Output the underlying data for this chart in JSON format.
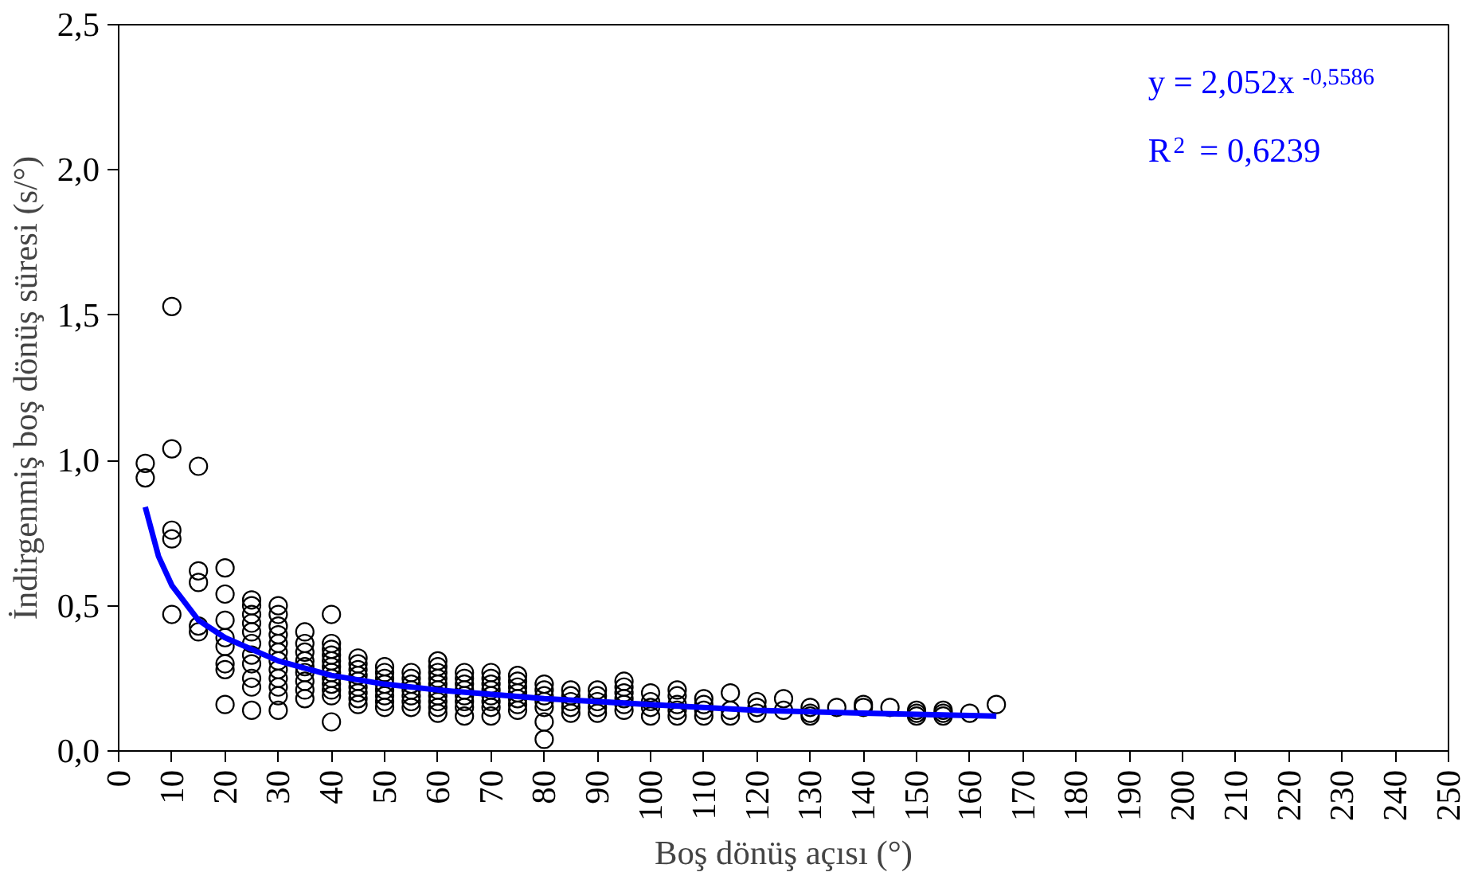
{
  "chart_data": {
    "type": "scatter",
    "xlabel": "Boş dönüş açısı (°)",
    "ylabel": "İndirgenmiş boş dönüş süresi (s/°)",
    "xlim": [
      0,
      250
    ],
    "ylim": [
      0,
      2.5
    ],
    "xticks": [
      0,
      10,
      20,
      30,
      40,
      50,
      60,
      70,
      80,
      90,
      100,
      110,
      120,
      130,
      140,
      150,
      160,
      170,
      180,
      190,
      200,
      210,
      220,
      230,
      240,
      250
    ],
    "yticks": [
      {
        "value": 0,
        "label": "0,0"
      },
      {
        "value": 0.5,
        "label": "0,5"
      },
      {
        "value": 1,
        "label": "1,0"
      },
      {
        "value": 1.5,
        "label": "1,5"
      },
      {
        "value": 2,
        "label": "2,0"
      },
      {
        "value": 2.5,
        "label": "2,5"
      }
    ],
    "grid": false,
    "annotations": [
      "y = 2,052x$^{-0,5586}$",
      "R$^{2}$ = 0,6239"
    ],
    "series": [
      {
        "marker": "circle",
        "color": "#000000",
        "x": [
          5,
          5,
          10,
          10,
          10,
          10,
          10,
          15,
          15,
          15,
          15,
          15,
          20,
          20,
          20,
          20,
          20,
          20,
          20,
          20,
          25,
          25,
          25,
          25,
          25,
          25,
          25,
          25,
          25,
          25,
          25,
          30,
          30,
          30,
          30,
          30,
          30,
          30,
          30,
          30,
          30,
          30,
          30,
          35,
          35,
          35,
          35,
          35,
          35,
          35,
          35,
          35,
          40,
          40,
          40,
          40,
          40,
          40,
          40,
          40,
          40,
          40,
          40,
          40,
          45,
          45,
          45,
          45,
          45,
          45,
          45,
          45,
          45,
          50,
          50,
          50,
          50,
          50,
          50,
          50,
          50,
          55,
          55,
          55,
          55,
          55,
          55,
          55,
          60,
          60,
          60,
          60,
          60,
          60,
          60,
          60,
          60,
          60,
          65,
          65,
          65,
          65,
          65,
          65,
          65,
          65,
          70,
          70,
          70,
          70,
          70,
          70,
          70,
          70,
          75,
          75,
          75,
          75,
          75,
          75,
          75,
          80,
          80,
          80,
          80,
          80,
          80,
          80,
          85,
          85,
          85,
          85,
          85,
          90,
          90,
          90,
          90,
          90,
          95,
          95,
          95,
          95,
          95,
          95,
          100,
          100,
          100,
          100,
          105,
          105,
          105,
          105,
          105,
          110,
          110,
          110,
          110,
          115,
          115,
          115,
          120,
          120,
          120,
          125,
          125,
          130,
          130,
          130,
          135,
          140,
          140,
          145,
          150,
          150,
          150,
          155,
          155,
          155,
          160,
          165
        ],
        "values": [
          0.99,
          0.94,
          1.53,
          1.04,
          0.76,
          0.73,
          0.47,
          0.98,
          0.62,
          0.58,
          0.43,
          0.41,
          0.63,
          0.54,
          0.45,
          0.39,
          0.36,
          0.3,
          0.28,
          0.16,
          0.52,
          0.5,
          0.47,
          0.44,
          0.41,
          0.37,
          0.33,
          0.3,
          0.25,
          0.22,
          0.14,
          0.5,
          0.47,
          0.43,
          0.4,
          0.37,
          0.34,
          0.31,
          0.28,
          0.25,
          0.22,
          0.19,
          0.14,
          0.41,
          0.37,
          0.34,
          0.31,
          0.29,
          0.27,
          0.24,
          0.21,
          0.18,
          0.47,
          0.37,
          0.35,
          0.33,
          0.31,
          0.29,
          0.27,
          0.25,
          0.23,
          0.21,
          0.19,
          0.1,
          0.32,
          0.3,
          0.28,
          0.26,
          0.24,
          0.22,
          0.2,
          0.18,
          0.16,
          0.29,
          0.27,
          0.25,
          0.23,
          0.21,
          0.19,
          0.17,
          0.15,
          0.27,
          0.25,
          0.23,
          0.21,
          0.19,
          0.17,
          0.15,
          0.31,
          0.29,
          0.27,
          0.25,
          0.23,
          0.21,
          0.19,
          0.17,
          0.15,
          0.13,
          0.27,
          0.25,
          0.23,
          0.21,
          0.19,
          0.17,
          0.15,
          0.12,
          0.27,
          0.25,
          0.23,
          0.21,
          0.19,
          0.17,
          0.15,
          0.12,
          0.26,
          0.24,
          0.22,
          0.2,
          0.18,
          0.16,
          0.14,
          0.23,
          0.21,
          0.19,
          0.17,
          0.15,
          0.1,
          0.04,
          0.21,
          0.19,
          0.17,
          0.15,
          0.13,
          0.21,
          0.19,
          0.17,
          0.15,
          0.13,
          0.24,
          0.22,
          0.2,
          0.18,
          0.16,
          0.14,
          0.2,
          0.17,
          0.15,
          0.12,
          0.21,
          0.19,
          0.16,
          0.14,
          0.12,
          0.18,
          0.16,
          0.14,
          0.12,
          0.2,
          0.14,
          0.12,
          0.17,
          0.15,
          0.13,
          0.18,
          0.14,
          0.15,
          0.13,
          0.12,
          0.15,
          0.16,
          0.15,
          0.15,
          0.14,
          0.13,
          0.12,
          0.14,
          0.13,
          0.12,
          0.13,
          0.16
        ]
      },
      {
        "type": "line",
        "color": "#0000ff",
        "line_style": "solid",
        "x": [
          5,
          7.5,
          10,
          15,
          20,
          30,
          40,
          50,
          60,
          80,
          100,
          120,
          140,
          165
        ],
        "values": [
          0.84,
          0.67,
          0.57,
          0.45,
          0.39,
          0.31,
          0.26,
          0.23,
          0.21,
          0.18,
          0.16,
          0.14,
          0.13,
          0.12
        ]
      }
    ]
  }
}
